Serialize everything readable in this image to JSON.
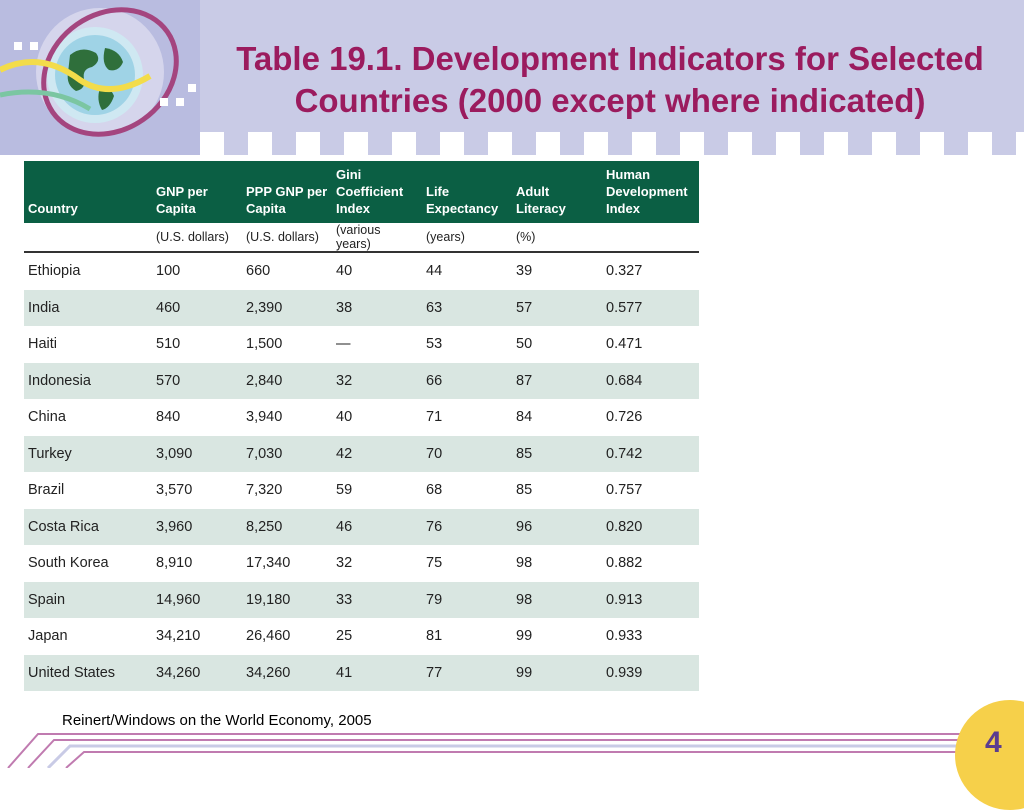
{
  "title": "Table 19.1. Development Indicators for Selected Countries (2000 except where indicated)",
  "colors": {
    "title": "#9b1b5e",
    "header_bg": "#0b5f44",
    "alt_row": "#d9e6e1",
    "band": "#c9cbe6",
    "page_badge": "#f6d04a"
  },
  "table": {
    "headers": [
      "Country",
      "GNP per Capita",
      "PPP GNP per Capita",
      "Gini Coefficient Index",
      "Life Expectancy",
      "Adult Literacy",
      "Human Development Index"
    ],
    "units": [
      "",
      "(U.S. dollars)",
      "(U.S. dollars)",
      "(various years)",
      "(years)",
      "(%)",
      ""
    ],
    "rows": [
      [
        "Ethiopia",
        "100",
        "660",
        "40",
        "44",
        "39",
        "0.327"
      ],
      [
        "India",
        "460",
        "2,390",
        "38",
        "63",
        "57",
        "0.577"
      ],
      [
        "Haiti",
        "510",
        "1,500",
        "—",
        "53",
        "50",
        "0.471"
      ],
      [
        "Indonesia",
        "570",
        "2,840",
        "32",
        "66",
        "87",
        "0.684"
      ],
      [
        "China",
        "840",
        "3,940",
        "40",
        "71",
        "84",
        "0.726"
      ],
      [
        "Turkey",
        "3,090",
        "7,030",
        "42",
        "70",
        "85",
        "0.742"
      ],
      [
        "Brazil",
        "3,570",
        "7,320",
        "59",
        "68",
        "85",
        "0.757"
      ],
      [
        "Costa Rica",
        "3,960",
        "8,250",
        "46",
        "76",
        "96",
        "0.820"
      ],
      [
        "South Korea",
        "8,910",
        "17,340",
        "32",
        "75",
        "98",
        "0.882"
      ],
      [
        "Spain",
        "14,960",
        "19,180",
        "33",
        "79",
        "98",
        "0.913"
      ],
      [
        "Japan",
        "34,210",
        "26,460",
        "25",
        "81",
        "99",
        "0.933"
      ],
      [
        "United States",
        "34,260",
        "34,260",
        "41",
        "77",
        "99",
        "0.939"
      ]
    ]
  },
  "source": "Reinert/Windows on the World Economy, 2005",
  "page_number": "4"
}
